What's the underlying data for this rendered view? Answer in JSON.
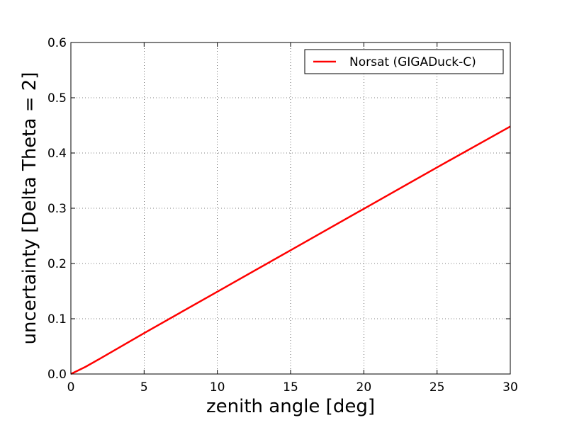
{
  "chart_data": {
    "type": "line",
    "xlabel": "zenith angle [deg]",
    "ylabel": "uncertainty [Delta Theta = 2]",
    "xlim": [
      0,
      30
    ],
    "ylim": [
      0,
      0.6
    ],
    "x_ticks": [
      0,
      5,
      10,
      15,
      20,
      25,
      30
    ],
    "x_tick_labels": [
      "0",
      "5",
      "10",
      "15",
      "20",
      "25",
      "30"
    ],
    "y_ticks": [
      0.0,
      0.1,
      0.2,
      0.3,
      0.4,
      0.5,
      0.6
    ],
    "y_tick_labels": [
      "0.0",
      "0.1",
      "0.2",
      "0.3",
      "0.4",
      "0.5",
      "0.6"
    ],
    "grid": true,
    "legend_position": "top-right",
    "series": [
      {
        "name": "Norsat (GIGADuck-C)",
        "color": "#ff0000",
        "x": [
          0,
          1,
          2,
          5,
          10,
          15,
          20,
          25,
          30
        ],
        "y": [
          0.0,
          0.013,
          0.028,
          0.074,
          0.149,
          0.224,
          0.299,
          0.374,
          0.448
        ]
      }
    ]
  }
}
